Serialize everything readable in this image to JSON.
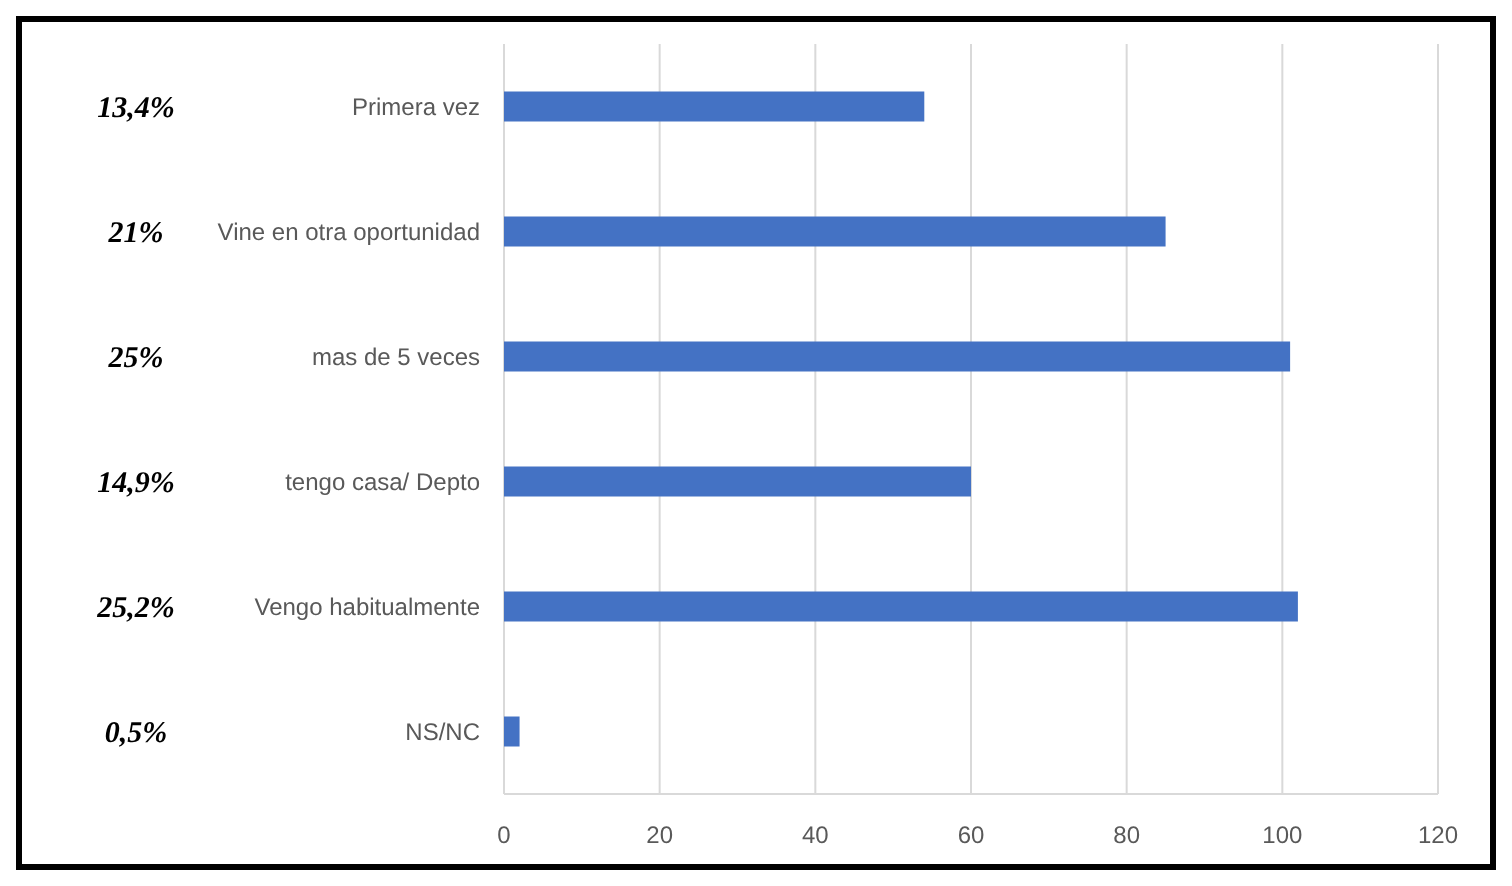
{
  "chart_data": {
    "type": "bar",
    "orientation": "horizontal",
    "categories": [
      "Primera vez",
      "Vine en otra oportunidad",
      "mas de 5 veces",
      "tengo casa/ Depto",
      "Vengo habitualmente",
      "NS/NC"
    ],
    "values": [
      54,
      85,
      101,
      60,
      102,
      2
    ],
    "annotations": [
      "13,4%",
      "21%",
      "25%",
      "14,9%",
      "25,2%",
      "0,5%"
    ],
    "color": "#4472c4",
    "xlim": [
      0,
      120
    ],
    "xticks": [
      0,
      20,
      40,
      60,
      80,
      100,
      120
    ],
    "grid": "x"
  }
}
